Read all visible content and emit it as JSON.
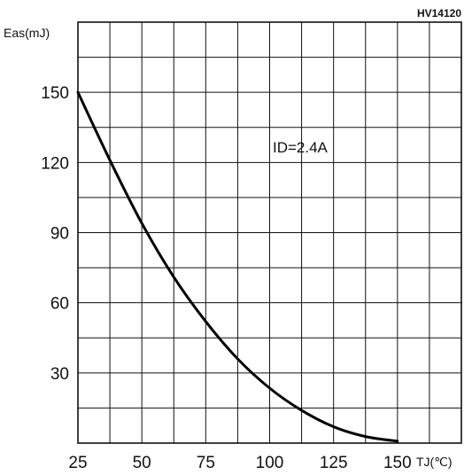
{
  "chart_data": {
    "type": "line",
    "figure_code": "HV14120",
    "xlabel": "TJ(℃)",
    "ylabel": "Eas(mJ)",
    "annotation": "ID=2.4A",
    "x_ticks": [
      "25",
      "50",
      "75",
      "100",
      "125",
      "150"
    ],
    "y_ticks": [
      "30",
      "60",
      "90",
      "120",
      "150"
    ],
    "xlim": [
      25,
      175
    ],
    "ylim": [
      0,
      180
    ],
    "grid": true,
    "series": [
      {
        "x": [
          25,
          37.5,
          50,
          62.5,
          75,
          87.5,
          100,
          112.5,
          125,
          137.5,
          150
        ],
        "y": [
          150,
          121,
          94,
          71,
          52,
          36,
          23.5,
          14,
          7,
          2.8,
          0.8
        ]
      }
    ]
  }
}
